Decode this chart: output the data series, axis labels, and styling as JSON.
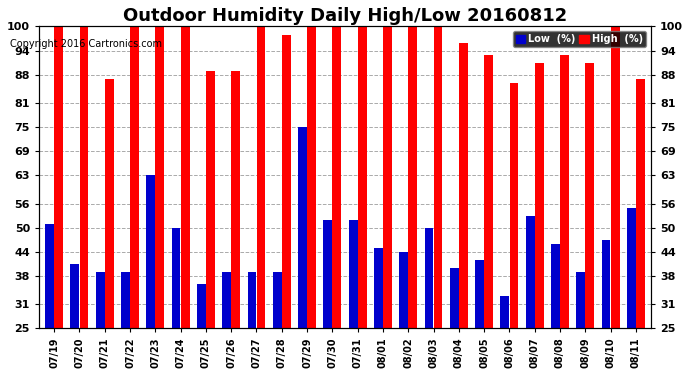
{
  "title": "Outdoor Humidity Daily High/Low 20160812",
  "copyright": "Copyright 2016 Cartronics.com",
  "dates": [
    "07/19",
    "07/20",
    "07/21",
    "07/22",
    "07/23",
    "07/24",
    "07/25",
    "07/26",
    "07/27",
    "07/28",
    "07/29",
    "07/30",
    "07/31",
    "08/01",
    "08/02",
    "08/03",
    "08/04",
    "08/05",
    "08/06",
    "08/07",
    "08/08",
    "08/09",
    "08/10",
    "08/11"
  ],
  "high": [
    100,
    100,
    87,
    100,
    100,
    100,
    89,
    89,
    100,
    98,
    100,
    100,
    100,
    100,
    100,
    100,
    96,
    93,
    86,
    91,
    93,
    91,
    100,
    87
  ],
  "low": [
    51,
    41,
    39,
    39,
    63,
    50,
    36,
    39,
    39,
    39,
    75,
    52,
    52,
    45,
    44,
    50,
    40,
    42,
    33,
    53,
    46,
    39,
    47,
    55
  ],
  "high_color": "#ff0000",
  "low_color": "#0000cc",
  "bg_color": "#ffffff",
  "grid_color": "#aaaaaa",
  "yticks": [
    25,
    31,
    38,
    44,
    50,
    56,
    63,
    69,
    75,
    81,
    88,
    94,
    100
  ],
  "ylim": [
    25,
    100
  ],
  "ymin": 25,
  "title_fontsize": 13,
  "legend_low_label": "Low  (%)",
  "legend_high_label": "High  (%)"
}
